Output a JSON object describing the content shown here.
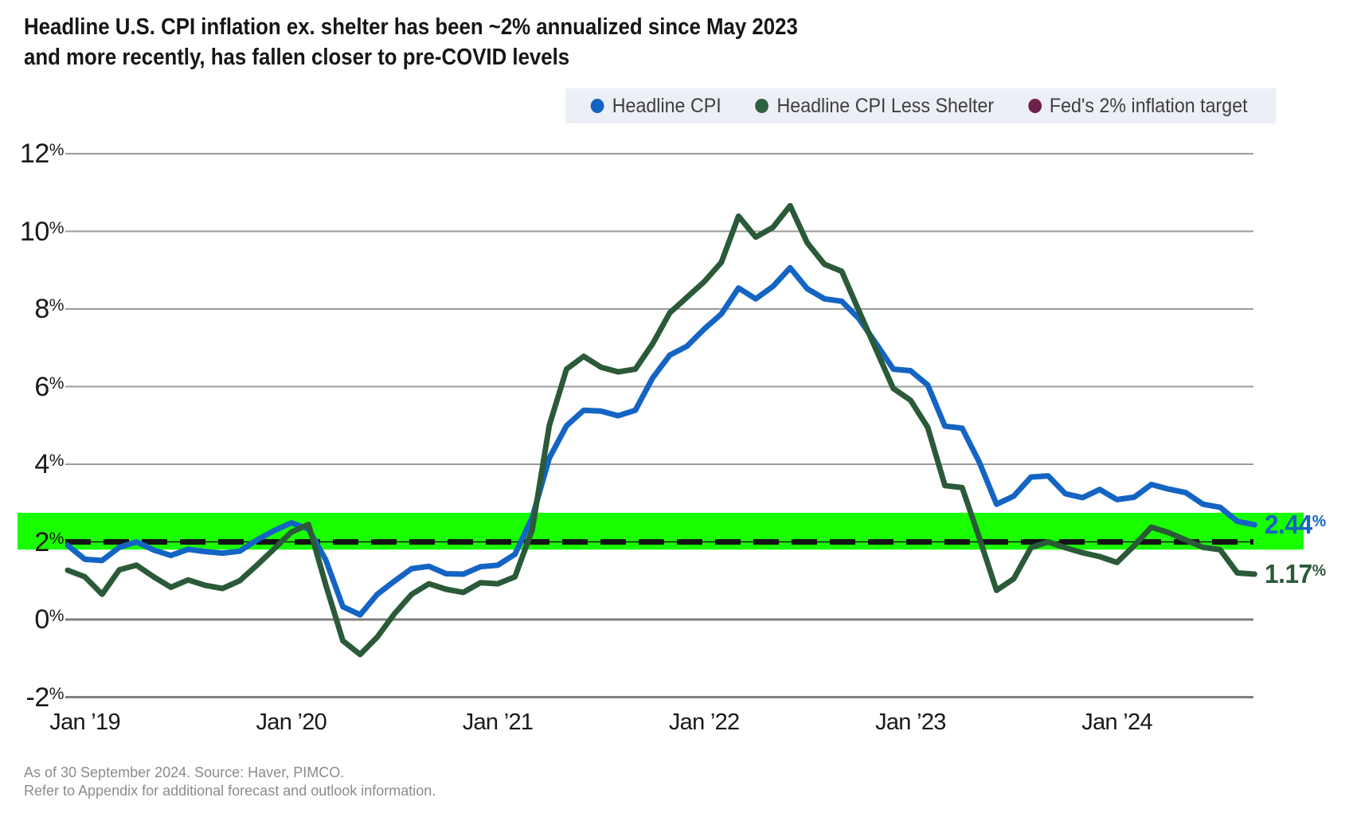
{
  "title": {
    "line1": "Headline U.S. CPI inflation ex. shelter has been ~2% annualized since May 2023",
    "line2": "and more recently, has fallen closer to pre-COVID levels"
  },
  "legend": {
    "background": "#edeff6",
    "items": [
      {
        "label": "Headline CPI",
        "color": "#1464c4"
      },
      {
        "label": "Headline CPI Less Shelter",
        "color": "#2d6040"
      },
      {
        "label": "Fed's 2% inflation target",
        "color": "#6d2049"
      }
    ]
  },
  "footer": {
    "line1": "As of 30 September 2024. Source: Haver, PIMCO.",
    "line2": "Refer to Appendix for additional forecast and outlook information."
  },
  "chart_data": {
    "type": "line",
    "frequency": "monthly",
    "x_start": "Dec 2018",
    "x_end": "Sep 2024",
    "ylim": [
      -2.6,
      12.9
    ],
    "grid": "horizontal",
    "y_ticks": [
      {
        "label": "12%",
        "value": 12
      },
      {
        "label": "10%",
        "value": 10
      },
      {
        "label": "8%",
        "value": 8
      },
      {
        "label": "6%",
        "value": 6
      },
      {
        "label": "4%",
        "value": 4
      },
      {
        "label": "2%",
        "value": 2
      },
      {
        "label": "0%",
        "value": 0
      },
      {
        "label": "-2%",
        "value": -2
      }
    ],
    "x_ticks": [
      {
        "label": "Jan ’19",
        "month_index": 1
      },
      {
        "label": "Jan ’20",
        "month_index": 13
      },
      {
        "label": "Jan ’21",
        "month_index": 25
      },
      {
        "label": "Jan ’22",
        "month_index": 37
      },
      {
        "label": "Jan ’23",
        "month_index": 49
      },
      {
        "label": "Jan ’24",
        "month_index": 61
      }
    ],
    "highlight_band": {
      "from": 1.8,
      "to": 2.75,
      "color": "#1aff00"
    },
    "series": [
      {
        "name": "Headline CPI",
        "color": "#1464c4",
        "style": "solid",
        "end_label": "2.44%",
        "values": [
          1.91,
          1.55,
          1.52,
          1.86,
          2.0,
          1.79,
          1.65,
          1.81,
          1.75,
          1.71,
          1.76,
          2.05,
          2.29,
          2.49,
          2.33,
          1.54,
          0.33,
          0.12,
          0.65,
          0.99,
          1.31,
          1.37,
          1.18,
          1.17,
          1.36,
          1.4,
          1.68,
          2.62,
          4.16,
          4.99,
          5.39,
          5.37,
          5.25,
          5.39,
          6.22,
          6.81,
          7.04,
          7.48,
          7.87,
          8.54,
          8.26,
          8.58,
          9.06,
          8.52,
          8.26,
          8.2,
          7.75,
          7.11,
          6.45,
          6.41,
          6.04,
          4.98,
          4.93,
          4.05,
          2.97,
          3.18,
          3.67,
          3.7,
          3.24,
          3.14,
          3.35,
          3.09,
          3.15,
          3.48,
          3.36,
          3.27,
          2.97,
          2.89,
          2.53,
          2.44
        ]
      },
      {
        "name": "Headline CPI Less Shelter",
        "color": "#2a5a38",
        "style": "solid",
        "end_label": "1.17%",
        "values": [
          1.27,
          1.1,
          0.65,
          1.28,
          1.4,
          1.1,
          0.83,
          1.02,
          0.88,
          0.8,
          1.0,
          1.4,
          1.82,
          2.25,
          2.45,
          0.9,
          -0.55,
          -0.9,
          -0.45,
          0.15,
          0.65,
          0.92,
          0.78,
          0.7,
          0.95,
          0.92,
          1.1,
          2.3,
          5.0,
          6.45,
          6.78,
          6.5,
          6.38,
          6.45,
          7.1,
          7.9,
          8.3,
          8.7,
          9.2,
          10.39,
          9.85,
          10.1,
          10.66,
          9.7,
          9.15,
          8.97,
          7.95,
          6.95,
          5.95,
          5.65,
          4.95,
          3.45,
          3.4,
          2.1,
          0.75,
          1.05,
          1.85,
          2.0,
          1.85,
          1.72,
          1.62,
          1.47,
          1.9,
          2.38,
          2.24,
          2.05,
          1.86,
          1.8,
          1.2,
          1.17
        ]
      },
      {
        "name": "Fed's 2% inflation target",
        "color": "#141414",
        "style": "dashed",
        "value": 2.0
      }
    ]
  }
}
